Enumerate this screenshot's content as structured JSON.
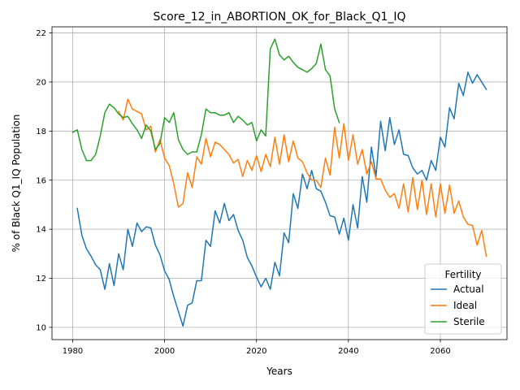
{
  "chart_data": {
    "type": "line",
    "title": "Score_12_in_ABORTION_OK_for_Black_Q1_IQ",
    "xlabel": "Years",
    "ylabel": "% of Black Q1_IQ Population",
    "xlim": [
      1975.5,
      2074.5
    ],
    "ylim": [
      9.5,
      22.25
    ],
    "xticks": [
      1980,
      2000,
      2020,
      2040,
      2060
    ],
    "yticks": [
      10,
      12,
      14,
      16,
      18,
      20,
      22
    ],
    "grid": true,
    "legend": {
      "title": "Fertility",
      "placement": "lower right"
    },
    "series": [
      {
        "name": "Actual",
        "color": "#1f77b4",
        "x": [
          1981,
          1982,
          1983,
          1984,
          1985,
          1986,
          1987,
          1988,
          1989,
          1990,
          1991,
          1992,
          1993,
          1994,
          1995,
          1996,
          1997,
          1998,
          1999,
          2000,
          2001,
          2002,
          2003,
          2004,
          2005,
          2006,
          2007,
          2008,
          2009,
          2010,
          2011,
          2012,
          2013,
          2014,
          2015,
          2016,
          2017,
          2018,
          2019,
          2020,
          2021,
          2022,
          2023,
          2024,
          2025,
          2026,
          2027,
          2028,
          2029,
          2030,
          2031,
          2032,
          2033,
          2034,
          2035,
          2036,
          2037,
          2038,
          2039,
          2040,
          2041,
          2042,
          2043,
          2044,
          2045,
          2046,
          2047,
          2048,
          2049,
          2050,
          2051,
          2052,
          2053,
          2054,
          2055,
          2056,
          2057,
          2058,
          2059,
          2060,
          2061,
          2062,
          2063,
          2064,
          2065,
          2066,
          2067,
          2068,
          2069,
          2070
        ],
        "y": [
          14.85,
          13.75,
          13.2,
          12.9,
          12.55,
          12.35,
          11.55,
          12.6,
          11.7,
          13.0,
          12.35,
          14.0,
          13.3,
          14.25,
          13.9,
          14.1,
          14.05,
          13.35,
          12.95,
          12.3,
          11.95,
          11.25,
          10.65,
          10.05,
          10.9,
          11.0,
          11.9,
          11.9,
          13.55,
          13.3,
          14.75,
          14.25,
          15.05,
          14.35,
          14.6,
          13.95,
          13.55,
          12.85,
          12.5,
          12.05,
          11.65,
          12.0,
          11.55,
          12.65,
          12.1,
          13.85,
          13.45,
          15.45,
          14.85,
          16.25,
          15.65,
          16.4,
          15.65,
          15.55,
          15.1,
          14.55,
          14.5,
          13.8,
          14.45,
          13.55,
          15.0,
          14.05,
          16.15,
          15.1,
          17.35,
          16.15,
          18.4,
          17.2,
          18.55,
          17.45,
          18.05,
          17.05,
          17.0,
          16.5,
          16.25,
          16.4,
          16.0,
          16.8,
          16.4,
          17.75,
          17.35,
          18.95,
          18.5,
          19.95,
          19.45,
          20.4,
          19.95,
          20.3,
          20.0,
          19.7
        ]
      },
      {
        "name": "Ideal",
        "color": "#ff7f0e",
        "x": [
          1990,
          1991,
          1992,
          1993,
          1994,
          1995,
          1996,
          1997,
          1998,
          1999,
          2000,
          2001,
          2002,
          2003,
          2004,
          2005,
          2006,
          2007,
          2008,
          2009,
          2010,
          2011,
          2012,
          2013,
          2014,
          2015,
          2016,
          2017,
          2018,
          2019,
          2020,
          2021,
          2022,
          2023,
          2024,
          2025,
          2026,
          2027,
          2028,
          2029,
          2030,
          2031,
          2032,
          2033,
          2034,
          2035,
          2036,
          2037,
          2038,
          2039,
          2040,
          2041,
          2042,
          2043,
          2044,
          2045,
          2046,
          2047,
          2048,
          2049,
          2050,
          2051,
          2052,
          2053,
          2054,
          2055,
          2056,
          2057,
          2058,
          2059,
          2060,
          2061,
          2062,
          2063,
          2064,
          2065,
          2066,
          2067,
          2068,
          2069,
          2070
        ],
        "y": [
          18.8,
          18.45,
          19.3,
          18.9,
          18.8,
          18.7,
          18.05,
          18.2,
          17.15,
          17.65,
          16.9,
          16.6,
          15.85,
          14.9,
          15.05,
          16.3,
          15.7,
          16.95,
          16.65,
          17.7,
          16.95,
          17.55,
          17.45,
          17.25,
          17.05,
          16.7,
          16.85,
          16.15,
          16.8,
          16.4,
          17.0,
          16.35,
          17.05,
          16.55,
          17.75,
          16.65,
          17.85,
          16.75,
          17.6,
          16.9,
          16.75,
          16.3,
          16.0,
          16.0,
          15.7,
          16.9,
          16.2,
          18.15,
          16.9,
          18.3,
          16.8,
          17.85,
          16.65,
          17.25,
          16.25,
          16.75,
          16.05,
          16.05,
          15.6,
          15.3,
          15.45,
          14.85,
          15.85,
          14.7,
          16.1,
          14.8,
          16.0,
          14.6,
          15.85,
          14.5,
          15.85,
          14.65,
          15.8,
          14.65,
          15.15,
          14.5,
          14.2,
          14.15,
          13.35,
          13.95,
          12.9
        ]
      },
      {
        "name": "Sterile",
        "color": "#2ca02c",
        "x": [
          1980,
          1981,
          1982,
          1983,
          1984,
          1985,
          1986,
          1987,
          1988,
          1989,
          1990,
          1991,
          1992,
          1993,
          1994,
          1995,
          1996,
          1997,
          1998,
          1999,
          2000,
          2001,
          2002,
          2003,
          2004,
          2005,
          2006,
          2007,
          2008,
          2009,
          2010,
          2011,
          2012,
          2013,
          2014,
          2015,
          2016,
          2017,
          2018,
          2019,
          2020,
          2021,
          2022,
          2023,
          2024,
          2025,
          2026,
          2027,
          2028,
          2029,
          2030,
          2031,
          2032,
          2033,
          2034,
          2035,
          2036,
          2037,
          2038
        ],
        "y": [
          17.95,
          18.05,
          17.25,
          16.8,
          16.8,
          17.05,
          17.8,
          18.75,
          19.1,
          18.95,
          18.7,
          18.55,
          18.6,
          18.3,
          18.05,
          17.7,
          18.25,
          18.0,
          17.25,
          17.5,
          18.55,
          18.35,
          18.75,
          17.65,
          17.25,
          17.05,
          17.15,
          17.15,
          17.85,
          18.9,
          18.75,
          18.75,
          18.65,
          18.65,
          18.75,
          18.35,
          18.6,
          18.45,
          18.25,
          18.35,
          17.6,
          18.05,
          17.8,
          21.35,
          21.75,
          21.1,
          20.9,
          21.05,
          20.8,
          20.6,
          20.5,
          20.4,
          20.55,
          20.75,
          21.55,
          20.5,
          20.25,
          18.9,
          18.35
        ]
      }
    ]
  }
}
